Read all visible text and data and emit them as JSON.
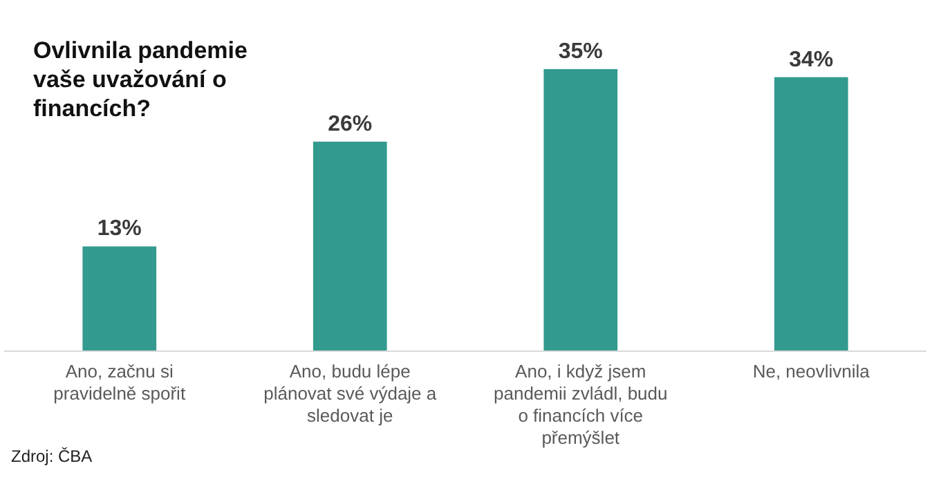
{
  "chart_data": {
    "type": "bar",
    "title": "Ovlivnila pandemie vaše uvažování o financích?",
    "categories": [
      "Ano, začnu si pravidelně spořit",
      "Ano, budu lépe plánovat své výdaje a sledovat je",
      "Ano, i když jsem pandemii zvládl, budu o financích více přemýšlet",
      "Ne, neovlivnila"
    ],
    "values": [
      13,
      26,
      35,
      34
    ],
    "value_labels": [
      "13%",
      "26%",
      "35%",
      "34%"
    ],
    "color": "#339a8f",
    "annotations": [
      "Zdroj: ČBA"
    ]
  }
}
